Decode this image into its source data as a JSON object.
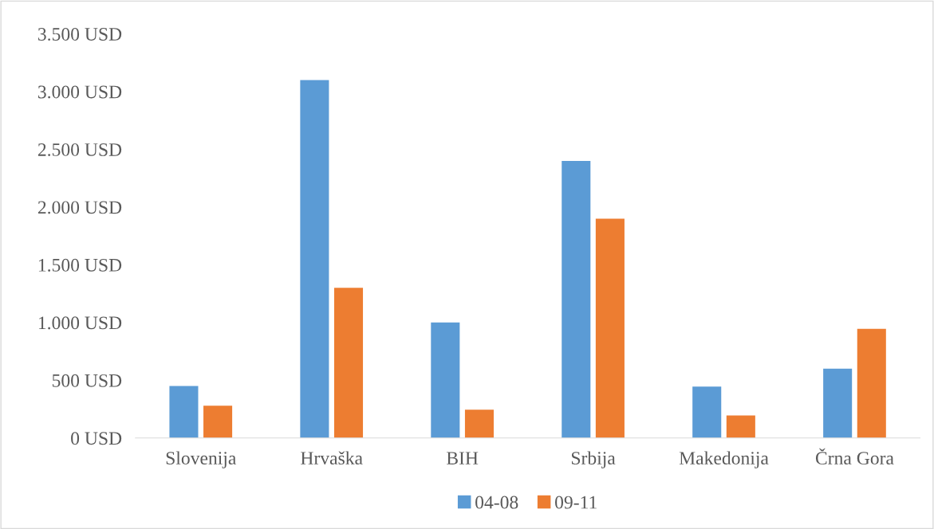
{
  "chart_data": {
    "type": "bar",
    "categories": [
      "Slovenija",
      "Hrvaška",
      "BIH",
      "Srbija",
      "Makedonija",
      "Črna Gora"
    ],
    "series": [
      {
        "name": "04-08",
        "color": "#5b9bd5",
        "values": [
          450,
          3100,
          1000,
          2400,
          445,
          600
        ]
      },
      {
        "name": "09-11",
        "color": "#ed7d31",
        "values": [
          280,
          1300,
          245,
          1900,
          195,
          945
        ]
      }
    ],
    "ylim": [
      0,
      3500
    ],
    "yticks": [
      {
        "value": 0,
        "label": "0 USD"
      },
      {
        "value": 500,
        "label": "500 USD"
      },
      {
        "value": 1000,
        "label": "1.000 USD"
      },
      {
        "value": 1500,
        "label": "1.500 USD"
      },
      {
        "value": 2000,
        "label": "2.000 USD"
      },
      {
        "value": 2500,
        "label": "2.500 USD"
      },
      {
        "value": 3000,
        "label": "3.000 USD"
      },
      {
        "value": 3500,
        "label": "3.500 USD"
      }
    ],
    "grid": false,
    "legend": "bottom"
  }
}
